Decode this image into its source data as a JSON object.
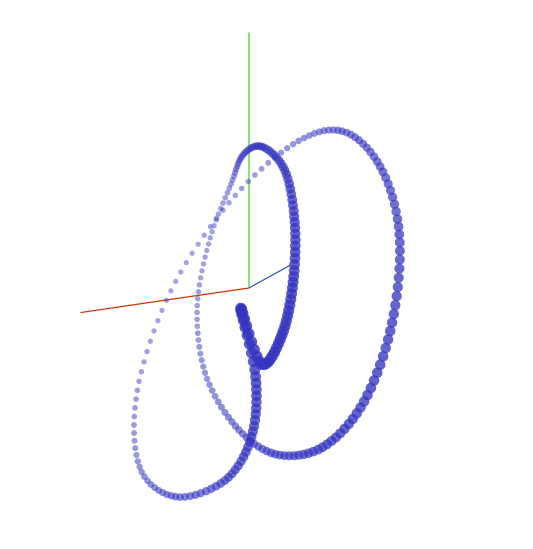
{
  "chart_data": {
    "type": "scatter",
    "title": "",
    "xlabel": "",
    "ylabel": "",
    "zlabel": "",
    "grid": false,
    "legend": "none",
    "axes_colors": {
      "x": "#cc3300",
      "y": "#44cc22",
      "z": "#3355cc"
    },
    "marker_color": "#3535c0",
    "series": [
      {
        "x": [
          0.26,
          0.29,
          0.18,
          -0.08,
          -0.48,
          -0.8,
          -0.9,
          -0.76,
          -0.42,
          0.02,
          0.41,
          0.74,
          0.95,
          0.98,
          0.84,
          0.55,
          0.17,
          -0.18,
          -0.46,
          -0.58,
          -0.53,
          -0.37,
          -0.2,
          0.03,
          0.28,
          0.44,
          0.5,
          0.47,
          0.37
        ],
        "y": [
          0.02,
          -0.36,
          -0.7,
          -0.95,
          -1.05,
          -0.92,
          -0.56,
          -0.09,
          0.33,
          0.62,
          0.7,
          0.54,
          0.22,
          -0.2,
          -0.58,
          -0.81,
          -0.86,
          -0.74,
          -0.49,
          -0.17,
          0.16,
          0.44,
          0.62,
          0.7,
          0.61,
          0.38,
          0.1,
          -0.15,
          -0.28
        ],
        "z": [
          -0.62,
          -0.52,
          -0.34,
          -0.1,
          0.18,
          0.44,
          0.62,
          0.7,
          0.64,
          0.44,
          0.18,
          -0.08,
          -0.3,
          -0.44,
          -0.46,
          -0.32,
          -0.06,
          0.22,
          0.46,
          0.62,
          0.66,
          0.56,
          0.34,
          0.08,
          -0.18,
          -0.4,
          -0.54,
          -0.6,
          -0.62
        ]
      }
    ]
  }
}
